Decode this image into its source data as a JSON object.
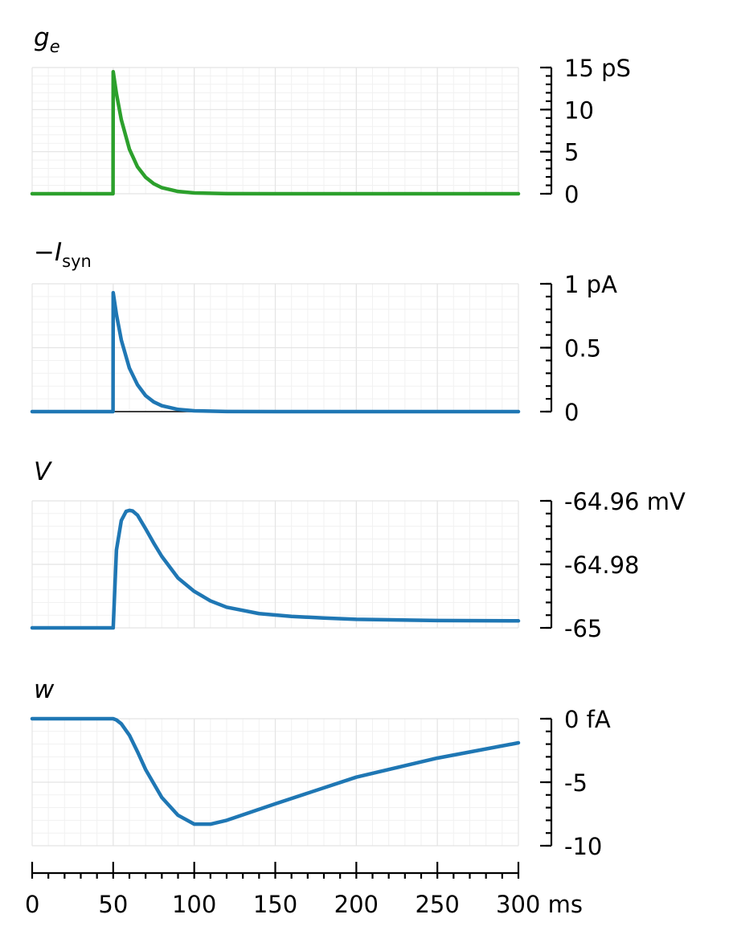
{
  "chart_data": {
    "type": "line",
    "x_axis": {
      "range": [
        0,
        300
      ],
      "ticks": [
        0,
        50,
        100,
        150,
        200,
        250,
        300
      ],
      "tick_labels": [
        "0",
        "50",
        "100",
        "150",
        "200",
        "250",
        "300 ms"
      ],
      "minor_step": 10
    },
    "colors": {
      "green": "#2ca02c",
      "blue": "#1f77b4"
    },
    "panels": [
      {
        "key": "ge",
        "title_main": "g",
        "title_sub": "e",
        "title_prefix": "",
        "color": "#2ca02c",
        "ylim": [
          0,
          15
        ],
        "yticks": [
          0,
          5,
          10,
          15
        ],
        "ytick_labels": [
          "0",
          "5",
          "10",
          "15 pS"
        ],
        "y_minor_step": 1,
        "zero_line": false,
        "x": [
          0,
          49.9,
          50,
          52,
          55,
          60,
          65,
          70,
          75,
          80,
          90,
          100,
          120,
          150,
          200,
          300
        ],
        "y": [
          0,
          0,
          14.5,
          11.9,
          8.8,
          5.3,
          3.2,
          1.96,
          1.19,
          0.72,
          0.27,
          0.1,
          0.01,
          0,
          0,
          0
        ]
      },
      {
        "key": "isyn",
        "title_main": "I",
        "title_sub": "syn",
        "title_prefix": "−",
        "color": "#1f77b4",
        "ylim": [
          0,
          1
        ],
        "yticks": [
          0,
          0.5,
          1
        ],
        "ytick_labels": [
          "0",
          "0.5",
          "1 pA"
        ],
        "y_minor_step": 0.1,
        "zero_line": true,
        "x": [
          0,
          49.9,
          50,
          52,
          55,
          60,
          65,
          70,
          75,
          80,
          90,
          100,
          120,
          150,
          200,
          300
        ],
        "y": [
          0,
          0,
          0.93,
          0.76,
          0.56,
          0.34,
          0.21,
          0.125,
          0.076,
          0.046,
          0.017,
          0.006,
          0.001,
          0,
          0,
          0
        ]
      },
      {
        "key": "v",
        "title_main": "V",
        "title_sub": "",
        "title_prefix": "",
        "color": "#1f77b4",
        "ylim": [
          -65,
          -64.96
        ],
        "yticks": [
          -65,
          -64.98,
          -64.96
        ],
        "ytick_labels": [
          "-65",
          "-64.98",
          "-64.96 mV"
        ],
        "y_minor_step": 0.004,
        "zero_line": false,
        "x": [
          0,
          50,
          52,
          55,
          58,
          60,
          62,
          65,
          70,
          75,
          80,
          90,
          100,
          110,
          120,
          140,
          160,
          180,
          200,
          250,
          300
        ],
        "y": [
          -65,
          -65,
          -64.9755,
          -64.9662,
          -64.9633,
          -64.963,
          -64.9632,
          -64.9645,
          -64.9688,
          -64.9733,
          -64.9775,
          -64.9843,
          -64.9885,
          -64.9915,
          -64.9935,
          -64.9955,
          -64.9964,
          -64.9969,
          -64.9973,
          -64.9977,
          -64.9978
        ]
      },
      {
        "key": "w",
        "title_main": "w",
        "title_sub": "",
        "title_prefix": "",
        "color": "#1f77b4",
        "ylim": [
          -10,
          0
        ],
        "yticks": [
          -10,
          -5,
          0
        ],
        "ytick_labels": [
          "-10",
          "-5",
          "0 fA"
        ],
        "y_minor_step": 1,
        "zero_line": false,
        "x": [
          0,
          50,
          52,
          55,
          60,
          65,
          70,
          80,
          90,
          100,
          110,
          120,
          150,
          200,
          250,
          300
        ],
        "y": [
          0,
          0,
          -0.1,
          -0.4,
          -1.3,
          -2.6,
          -4.0,
          -6.2,
          -7.6,
          -8.3,
          -8.3,
          -8.0,
          -6.7,
          -4.6,
          -3.1,
          -1.9
        ]
      }
    ]
  }
}
